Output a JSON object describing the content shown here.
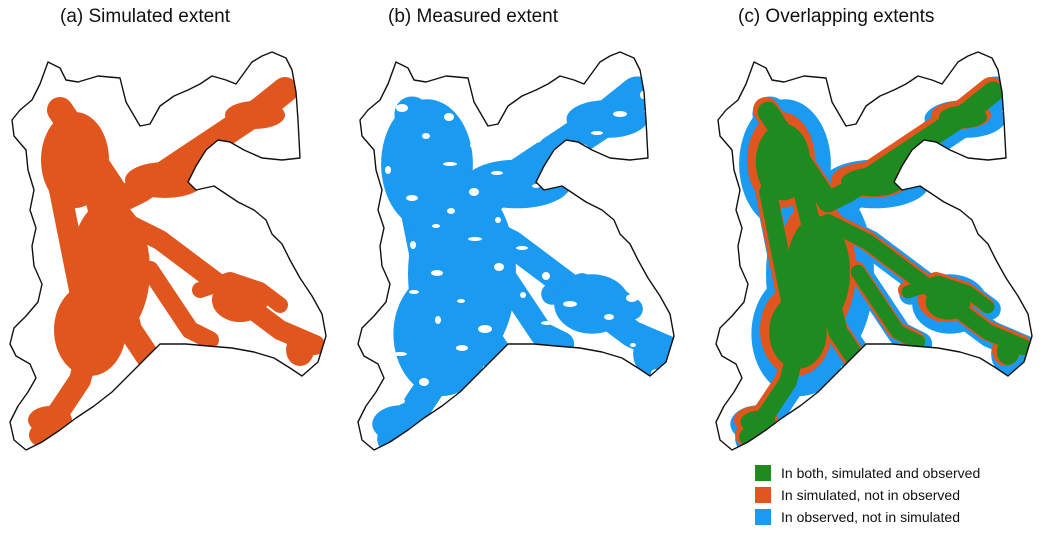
{
  "panels": [
    {
      "label": "(a)  Simulated extent"
    },
    {
      "label": "(b)  Measured extent"
    },
    {
      "label": "(c)  Overlapping extents"
    }
  ],
  "colors": {
    "both": "#1f8a1f",
    "simulated_only": "#e0561e",
    "observed_only": "#1a9af0",
    "boundary": "#111111",
    "background": "#ffffff"
  },
  "legend": {
    "items": [
      {
        "label": "In both, simulated and observed",
        "color": "#1f8a1f"
      },
      {
        "label": "In simulated, not in observed",
        "color": "#e0561e"
      },
      {
        "label": "In observed, not in simulated",
        "color": "#1a9af0"
      }
    ]
  }
}
